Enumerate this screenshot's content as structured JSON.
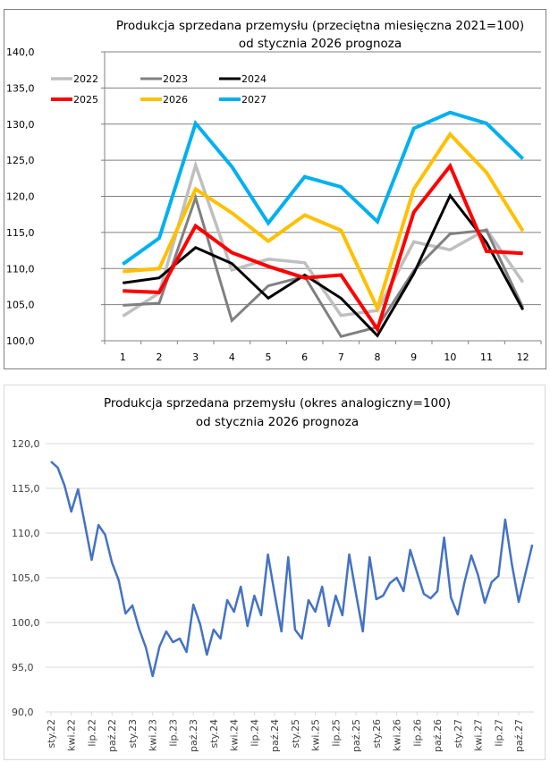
{
  "chart_data": [
    {
      "type": "line",
      "title": "Produkcja sprzedana przemysłu (przeciętna miesięczna 2021=100)",
      "subtitle": "od stycznia 2026 prognoza",
      "xlabel": "",
      "ylabel": "",
      "categories": [
        "1",
        "2",
        "3",
        "4",
        "5",
        "6",
        "7",
        "8",
        "9",
        "10",
        "11",
        "12"
      ],
      "ylim": [
        100,
        140
      ],
      "yticks": [
        "100,0",
        "105,0",
        "110,0",
        "115,0",
        "120,0",
        "125,0",
        "130,0",
        "135,0",
        "140,0"
      ],
      "grid": true,
      "legend_position": "top-left",
      "series": [
        {
          "name": "2022",
          "color": "#bfbfbf",
          "values": [
            103.4,
            106.6,
            124.3,
            109.8,
            111.3,
            110.8,
            103.5,
            104.2,
            113.7,
            112.6,
            115.4,
            108.1
          ]
        },
        {
          "name": "2023",
          "color": "#808080",
          "values": [
            104.9,
            105.2,
            119.8,
            102.8,
            107.6,
            108.9,
            100.6,
            101.9,
            109.7,
            114.8,
            115.3,
            104.6
          ]
        },
        {
          "name": "2024",
          "color": "#000000",
          "values": [
            108.0,
            108.7,
            112.9,
            110.7,
            105.9,
            109.1,
            105.9,
            100.7,
            109.3,
            120.1,
            113.6,
            104.3
          ]
        },
        {
          "name": "2025",
          "color": "#ff0000",
          "values": [
            106.9,
            106.7,
            115.9,
            112.2,
            110.3,
            108.7,
            109.1,
            101.6,
            117.8,
            124.2,
            112.4,
            112.1
          ]
        },
        {
          "name": "2026",
          "color": "#ffc000",
          "values": [
            109.6,
            110.0,
            121.0,
            117.7,
            113.8,
            117.4,
            115.3,
            104.5,
            121.0,
            128.6,
            123.3,
            115.2
          ]
        },
        {
          "name": "2027",
          "color": "#00b0f0",
          "values": [
            110.6,
            114.2,
            130.1,
            124.1,
            116.3,
            122.7,
            121.3,
            116.5,
            129.4,
            131.6,
            130.1,
            125.2
          ]
        }
      ]
    },
    {
      "type": "line",
      "title": "Produkcja sprzedana przemysłu (okres analogiczny=100)",
      "subtitle": "od stycznia 2026 prognoza",
      "xlabel": "",
      "ylabel": "",
      "ylim": [
        90,
        120
      ],
      "yticks": [
        "90,0",
        "95,0",
        "100,0",
        "105,0",
        "110,0",
        "115,0",
        "120,0"
      ],
      "grid": true,
      "legend_position": "none",
      "x_tick_labels": [
        "sty.22",
        "kwi.22",
        "lip.22",
        "paź.22",
        "sty.23",
        "kwi.23",
        "lip.23",
        "paź.23",
        "sty.24",
        "kwi.24",
        "lip.24",
        "paź.24",
        "sty.25",
        "kwi.25",
        "lip.25",
        "paź.25",
        "sty.26",
        "kwi.26",
        "lip.26",
        "paź.26",
        "sty.27",
        "kwi.27",
        "lip.27",
        "paź.27"
      ],
      "x_tick_every_months": 3,
      "series": [
        {
          "name": "Produkcja sprzedana przemysłu",
          "color": "#4472c4",
          "values": [
            118.0,
            117.3,
            115.3,
            112.4,
            114.9,
            111.0,
            107.0,
            110.9,
            109.8,
            106.7,
            104.7,
            101.0,
            101.9,
            99.3,
            97.2,
            94.0,
            97.3,
            99.0,
            97.8,
            98.2,
            96.7,
            102.0,
            99.8,
            96.4,
            99.2,
            98.2,
            102.5,
            101.2,
            104.0,
            99.6,
            103.0,
            100.8,
            107.6,
            103.2,
            99.0,
            107.3,
            99.2,
            98.2,
            102.5,
            101.2,
            104.0,
            99.6,
            103.0,
            100.8,
            107.6,
            103.2,
            99.0,
            107.3,
            102.6,
            103.0,
            104.4,
            105.0,
            103.5,
            108.1,
            105.6,
            103.2,
            102.7,
            103.5,
            109.5,
            102.8,
            100.9,
            104.5,
            107.5,
            105.3,
            102.2,
            104.5,
            105.2,
            111.5,
            106.5,
            102.3,
            105.5,
            108.7
          ]
        }
      ]
    }
  ]
}
